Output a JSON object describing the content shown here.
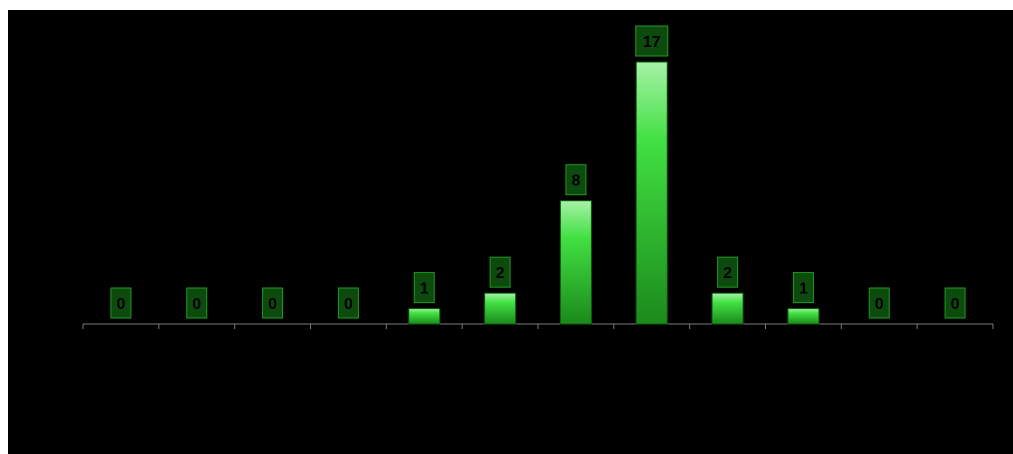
{
  "chart_data": {
    "type": "bar",
    "categories": [
      "",
      "",
      "",
      "",
      "",
      "",
      "",
      "",
      "",
      "",
      "",
      ""
    ],
    "values": [
      0,
      0,
      0,
      0,
      1,
      2,
      8,
      17,
      2,
      1,
      0,
      0
    ],
    "title": "",
    "xlabel": "",
    "ylabel": "",
    "ylim": [
      0,
      17
    ],
    "grid": false,
    "legend": "none",
    "data_labels": true
  },
  "colors": {
    "background": "#000000",
    "bar_top": "#a6f2a6",
    "bar_mid": "#42e042",
    "bar_bottom": "#1b8a1b",
    "label_fill": "#0d4a0d",
    "label_border": "#1f9a1f",
    "axis": "#7a7a7a"
  }
}
